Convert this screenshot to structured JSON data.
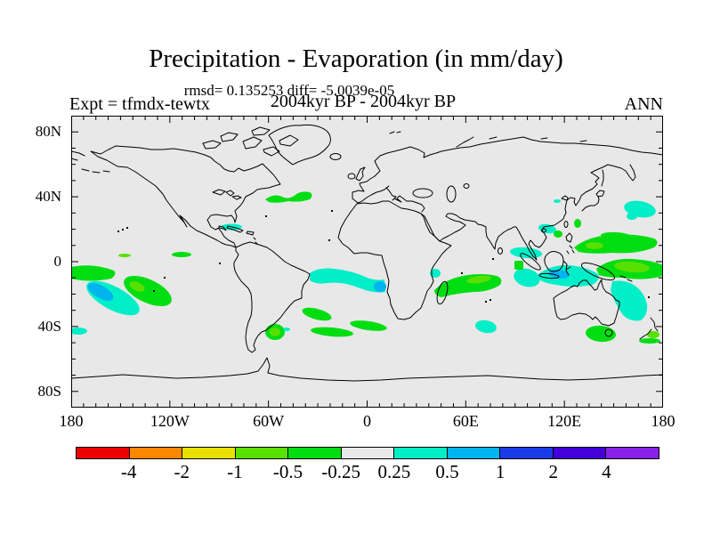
{
  "header": {
    "title": "Precipitation - Evaporation (in mm/day)",
    "stats": "rmsd= 0.135253 diff= -5.0039e-05",
    "period": "2004kyr BP - 2004kyr BP",
    "expt": "Expt = tfmdx-tewtx",
    "season": "ANN"
  },
  "axes": {
    "lat_labels": [
      "80N",
      "40N",
      "0",
      "40S",
      "80S"
    ],
    "lon_labels": [
      "180",
      "120W",
      "60W",
      "0",
      "60E",
      "120E",
      "180"
    ],
    "lat_range": [
      "90S",
      "90N"
    ],
    "lon_range": [
      "180W",
      "180E"
    ]
  },
  "colorbar": {
    "labels": [
      "-4",
      "-2",
      "-1",
      "-0.5",
      "-0.25",
      "0.25",
      "0.5",
      "1",
      "2",
      "4"
    ],
    "colors": [
      "#ee0000",
      "#ff8800",
      "#e8e000",
      "#58e000",
      "#00dd11",
      "#e8e8e8",
      "#00eec8",
      "#00b4f0",
      "#1a3ce8",
      "#4400d8",
      "#8822e8"
    ],
    "color_names": [
      "red",
      "orange",
      "yellow",
      "yellow-green",
      "green",
      "gray (near zero)",
      "turquoise",
      "sky-blue",
      "blue",
      "blue-violet",
      "purple"
    ]
  },
  "map_background": "#e8e8e8",
  "chart_data": {
    "type": "heatmap",
    "subtype": "filled-contour world map, equirectangular",
    "title": "Precipitation - Evaporation (in mm/day)",
    "units": "mm/day",
    "season": "ANN",
    "experiment": "tfmdx-tewtx",
    "comparison": "2004kyr BP - 2004kyr BP",
    "rmsd": 0.135253,
    "diff": -5.0039e-05,
    "contour_levels": [
      -4,
      -2,
      -1,
      -0.5,
      -0.25,
      0.25,
      0.5,
      1,
      2,
      4
    ],
    "lon_range_deg": [
      -180,
      180
    ],
    "lat_range_deg": [
      -90,
      90
    ],
    "note": "Field is ~0 (gray) almost everywhere; scattered weak anomalies only",
    "anomaly_regions": [
      {
        "area": "equatorial Pacific near date line",
        "lon": -166,
        "lat": -7,
        "band": "-0.5 to -0.25"
      },
      {
        "area": "south-central Pacific",
        "lon": -155,
        "lat": -21,
        "band": "+0.5 to +1 core, +0.25 to +0.5 rim"
      },
      {
        "area": "southeast Pacific",
        "lon": -133,
        "lat": -18,
        "band": "-1 to -0.5 core, -0.5 to -0.25 rim"
      },
      {
        "area": "equatorial mid-Pacific streak",
        "lon": -145,
        "lat": 4,
        "band": "-0.5 to -0.25"
      },
      {
        "area": "northwest Atlantic ~40N",
        "lon": -47,
        "lat": 40,
        "band": "-0.5 to -0.25"
      },
      {
        "area": "Caribbean near Cuba",
        "lon": -83,
        "lat": 22,
        "band": "+0.25 to +0.5"
      },
      {
        "area": "equatorial Atlantic to Gulf of Guinea",
        "lon": -12,
        "lat": -10,
        "band": "+0.25 to +0.5, +0.5 to +1 near Angola coast"
      },
      {
        "area": "South Atlantic streaks 35-45S",
        "lon": -15,
        "lat": -40,
        "band": "-0.5 to -0.25"
      },
      {
        "area": "Argentine shelf",
        "lon": -57,
        "lat": -43,
        "band": "-1 to -0.5"
      },
      {
        "area": "SW Pacific near date line 42S",
        "lon": -176,
        "lat": -42,
        "band": "+0.25 to +0.5"
      },
      {
        "area": "Indian Ocean east of Madagascar",
        "lon": 62,
        "lat": -13,
        "band": "-1 to -0.5 core, -0.5 to -0.25 rim"
      },
      {
        "area": "Mozambique Channel north",
        "lon": 42,
        "lat": -8,
        "band": "+0.25 to +0.5"
      },
      {
        "area": "southern Indian Ocean",
        "lon": 72,
        "lat": -40,
        "band": "+0.25 to +0.5"
      },
      {
        "area": "Gulf of Thailand / Indochina",
        "lon": 97,
        "lat": 6,
        "band": "+0.25 to +0.5"
      },
      {
        "area": "eastern Indian Ocean off Sumatra",
        "lon": 97,
        "lat": -10,
        "band": "+0.25 to +0.5"
      },
      {
        "area": "Indonesia / Java Sea",
        "lon": 122,
        "lat": -7,
        "band": "+0.5 to +1 core, +0.25 to +0.5 rim"
      },
      {
        "area": "South China Sea off Taiwan",
        "lon": 110,
        "lat": 21,
        "band": "+0.25 to +0.5"
      },
      {
        "area": "west Pacific east of Philippines",
        "lon": 150,
        "lat": 11,
        "band": "-1 to -0.5 core, -0.5 to -0.25 rim"
      },
      {
        "area": "west Pacific north of New Guinea",
        "lon": 159,
        "lat": -4,
        "band": "-1 to -0.5 core, -0.5 to -0.25 rim"
      },
      {
        "area": "Coral Sea east of Australia",
        "lon": 159,
        "lat": -24,
        "band": "+0.25 to +0.5"
      },
      {
        "area": "south of Australia / Tasmania",
        "lon": 142,
        "lat": -44,
        "band": "-0.5 to -0.25"
      },
      {
        "area": "North Pacific east of Japan",
        "lon": 166,
        "lat": 33,
        "band": "+0.25 to +0.5"
      },
      {
        "area": "near New Zealand",
        "lon": 172,
        "lat": -42,
        "band": "-1 to -0.25"
      }
    ]
  }
}
